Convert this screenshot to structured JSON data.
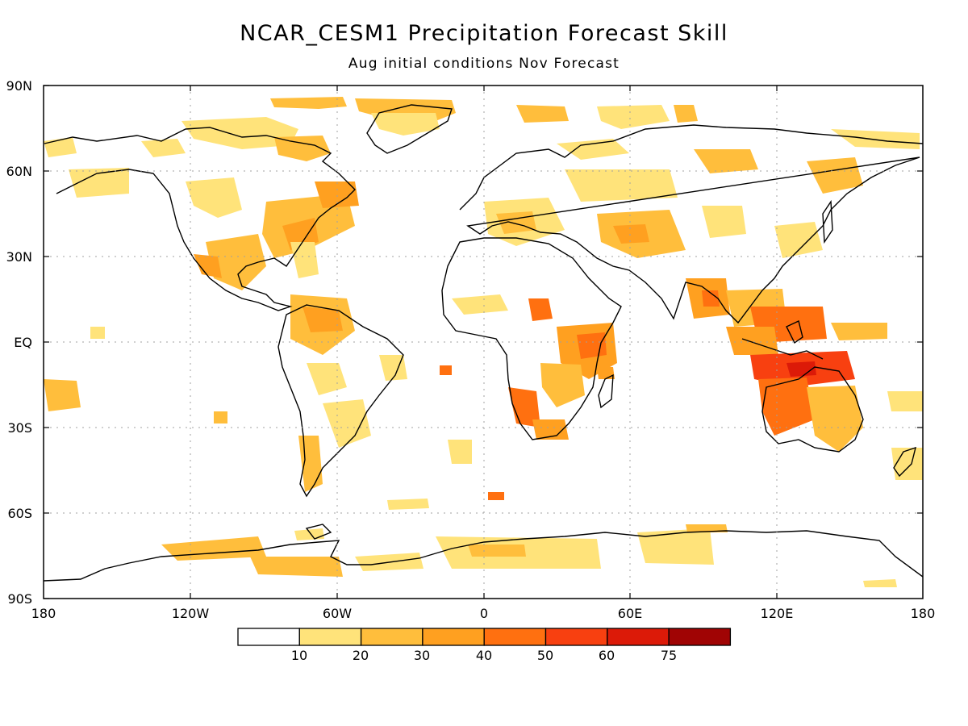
{
  "title": "NCAR_CESM1 Precipitation Forecast Skill",
  "subtitle": "Aug initial conditions  Nov Forecast",
  "lat_ticks": [
    "90N",
    "60N",
    "30N",
    "EQ",
    "30S",
    "60S",
    "90S"
  ],
  "lon_ticks": [
    "180",
    "120W",
    "60W",
    "0",
    "60E",
    "120E",
    "180"
  ],
  "colorbar": {
    "labels": [
      "10",
      "20",
      "30",
      "40",
      "50",
      "60",
      "75"
    ],
    "colors": [
      "#ffffff",
      "#ffe37a",
      "#ffbe3c",
      "#ffa020",
      "#ff7010",
      "#f84010",
      "#dc1a08",
      "#a00404"
    ]
  },
  "colors": {
    "land_outline": "#000000",
    "grid": "#a0a0a0"
  }
}
